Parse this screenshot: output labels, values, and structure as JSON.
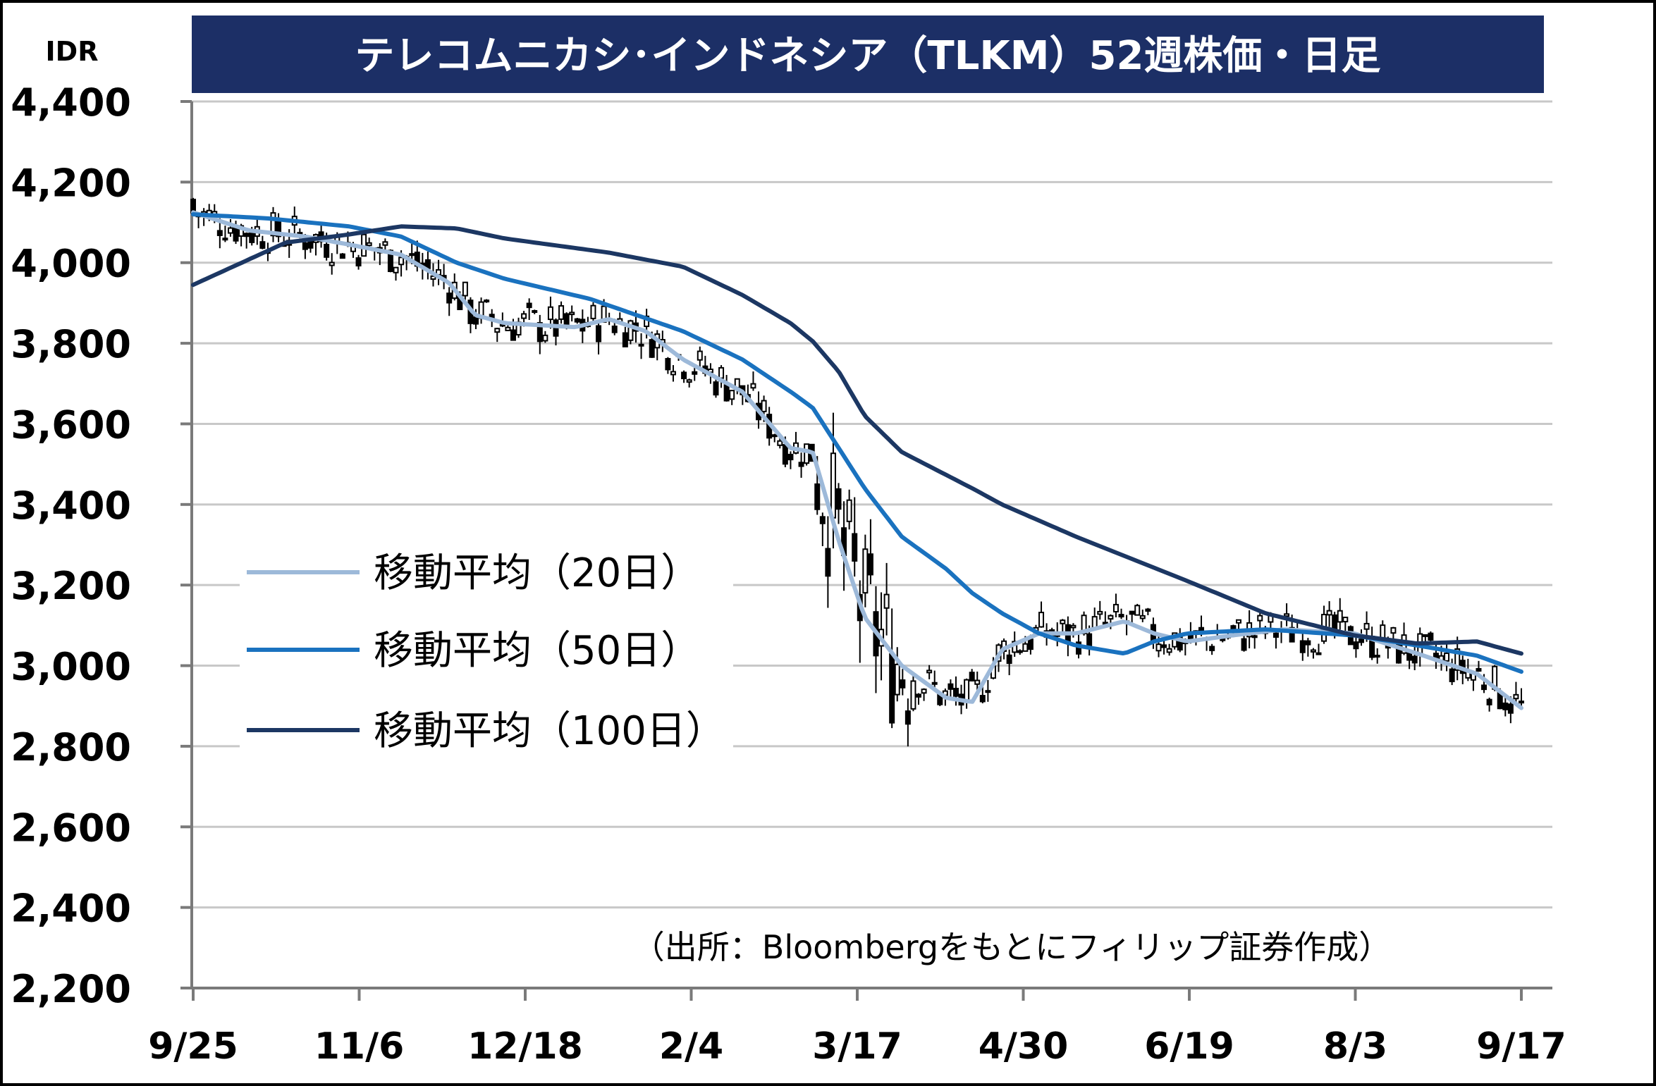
{
  "chart_data": {
    "type": "candlestick",
    "title": "テレコムニカシ･インドネシア（TLKM）52週株価・日足",
    "y_unit": "IDR",
    "ylim": [
      2200,
      4400
    ],
    "y_ticks": [
      4400,
      4200,
      4000,
      3800,
      3600,
      3400,
      3200,
      3000,
      2800,
      2600,
      2400,
      2200
    ],
    "y_tick_labels": [
      "4,400",
      "4,200",
      "4,000",
      "3,800",
      "3,600",
      "3,400",
      "3,200",
      "3,000",
      "2,800",
      "2,600",
      "2,400",
      "2,200"
    ],
    "x_tick_labels": [
      "9/25",
      "11/6",
      "12/18",
      "2/4",
      "3/17",
      "4/30",
      "6/19",
      "8/3",
      "9/17"
    ],
    "grid": true,
    "legend_position": "center-left",
    "series": [
      {
        "name": "移動平均（20日）",
        "color": "#9db9d9",
        "points": [
          [
            "9/25",
            4125
          ],
          [
            "10/10",
            4080
          ],
          [
            "10/25",
            4065
          ],
          [
            "11/6",
            4045
          ],
          [
            "11/20",
            4020
          ],
          [
            "12/3",
            3950
          ],
          [
            "12/10",
            3870
          ],
          [
            "12/18",
            3850
          ],
          [
            "1/6",
            3840
          ],
          [
            "1/15",
            3860
          ],
          [
            "1/25",
            3830
          ],
          [
            "2/4",
            3760
          ],
          [
            "2/20",
            3680
          ],
          [
            "3/4",
            3540
          ],
          [
            "3/10",
            3530
          ],
          [
            "3/17",
            3310
          ],
          [
            "3/24",
            3120
          ],
          [
            "4/3",
            3000
          ],
          [
            "4/15",
            2920
          ],
          [
            "4/22",
            2910
          ],
          [
            "4/30",
            3040
          ],
          [
            "5/10",
            3080
          ],
          [
            "5/20",
            3080
          ],
          [
            "6/2",
            3110
          ],
          [
            "6/10",
            3080
          ],
          [
            "6/19",
            3060
          ],
          [
            "7/1",
            3075
          ],
          [
            "7/15",
            3090
          ],
          [
            "8/3",
            3080
          ],
          [
            "8/20",
            3030
          ],
          [
            "9/5",
            2980
          ],
          [
            "9/17",
            2895
          ]
        ]
      },
      {
        "name": "移動平均（50日）",
        "color": "#1a72bf",
        "points": [
          [
            "9/25",
            4120
          ],
          [
            "10/15",
            4110
          ],
          [
            "11/6",
            4090
          ],
          [
            "11/20",
            4065
          ],
          [
            "12/5",
            4000
          ],
          [
            "12/18",
            3960
          ],
          [
            "1/10",
            3910
          ],
          [
            "2/4",
            3830
          ],
          [
            "2/20",
            3760
          ],
          [
            "3/4",
            3680
          ],
          [
            "3/10",
            3640
          ],
          [
            "3/17",
            3540
          ],
          [
            "3/24",
            3440
          ],
          [
            "4/3",
            3320
          ],
          [
            "4/15",
            3240
          ],
          [
            "4/22",
            3180
          ],
          [
            "4/30",
            3130
          ],
          [
            "5/10",
            3080
          ],
          [
            "5/20",
            3050
          ],
          [
            "6/2",
            3030
          ],
          [
            "6/10",
            3060
          ],
          [
            "6/19",
            3080
          ],
          [
            "7/10",
            3090
          ],
          [
            "8/3",
            3075
          ],
          [
            "8/20",
            3050
          ],
          [
            "9/5",
            3025
          ],
          [
            "9/17",
            2985
          ]
        ]
      },
      {
        "name": "移動平均（100日）",
        "color": "#1c3763",
        "points": [
          [
            "9/25",
            3945
          ],
          [
            "10/20",
            4050
          ],
          [
            "11/6",
            4070
          ],
          [
            "11/20",
            4090
          ],
          [
            "12/5",
            4085
          ],
          [
            "12/18",
            4060
          ],
          [
            "1/15",
            4025
          ],
          [
            "2/4",
            3990
          ],
          [
            "2/20",
            3920
          ],
          [
            "3/4",
            3850
          ],
          [
            "3/10",
            3805
          ],
          [
            "3/17",
            3730
          ],
          [
            "3/24",
            3620
          ],
          [
            "4/3",
            3530
          ],
          [
            "4/22",
            3440
          ],
          [
            "4/30",
            3400
          ],
          [
            "5/20",
            3320
          ],
          [
            "6/19",
            3210
          ],
          [
            "7/10",
            3130
          ],
          [
            "8/3",
            3075
          ],
          [
            "8/20",
            3055
          ],
          [
            "9/5",
            3060
          ],
          [
            "9/17",
            3030
          ]
        ]
      }
    ],
    "annotation": "（出所：Bloombergをもとにフィリップ証券作成）"
  }
}
